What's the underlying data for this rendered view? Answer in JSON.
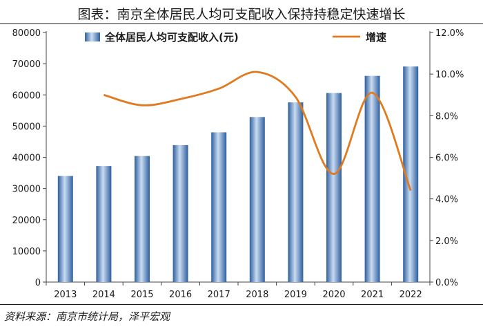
{
  "title": "图表：南京全体居民人均可支配收入保持持稳定快速增长",
  "source": "资料来源：南京市统计局，泽平宏观",
  "colors": {
    "bar": "#4a7fbf",
    "line": "#e07a1e"
  },
  "chart_data": {
    "type": "bar",
    "categories": [
      "2013",
      "2014",
      "2015",
      "2016",
      "2017",
      "2018",
      "2019",
      "2020",
      "2021",
      "2022"
    ],
    "series": [
      {
        "name": "全体居民人均可支配收入(元)",
        "type": "bar",
        "axis": "left",
        "values": [
          34000,
          37200,
          40400,
          43900,
          48000,
          52900,
          57600,
          60600,
          66100,
          69100
        ]
      },
      {
        "name": "增速",
        "type": "line",
        "axis": "right",
        "values": [
          null,
          9.0,
          8.5,
          8.8,
          9.3,
          10.1,
          8.9,
          5.2,
          9.1,
          4.4
        ]
      }
    ],
    "ylim_left": [
      0,
      80000
    ],
    "yticks_left": [
      "0",
      "10000",
      "20000",
      "30000",
      "40000",
      "50000",
      "60000",
      "70000",
      "80000"
    ],
    "ylim_right": [
      0,
      12
    ],
    "yticks_right": [
      "0.0%",
      "2.0%",
      "4.0%",
      "6.0%",
      "8.0%",
      "10.0%",
      "12.0%"
    ],
    "legend": "top",
    "grid": false
  }
}
